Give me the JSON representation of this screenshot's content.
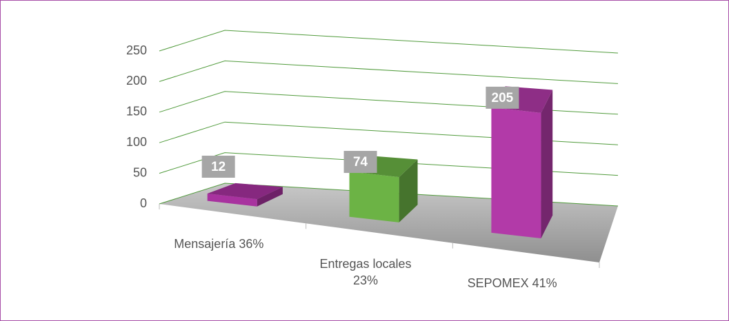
{
  "chart_data": {
    "type": "bar3d",
    "categories": [
      "Mensajería 36%",
      "Entregas locales 23%",
      "SEPOMEX 41%"
    ],
    "values": [
      12,
      74,
      205
    ],
    "colors": [
      "#a8329f",
      "#6cb345",
      "#b23aa8"
    ],
    "ylim": [
      0,
      250
    ],
    "yticks": [
      0,
      50,
      100,
      150,
      200,
      250
    ],
    "grid": true
  }
}
